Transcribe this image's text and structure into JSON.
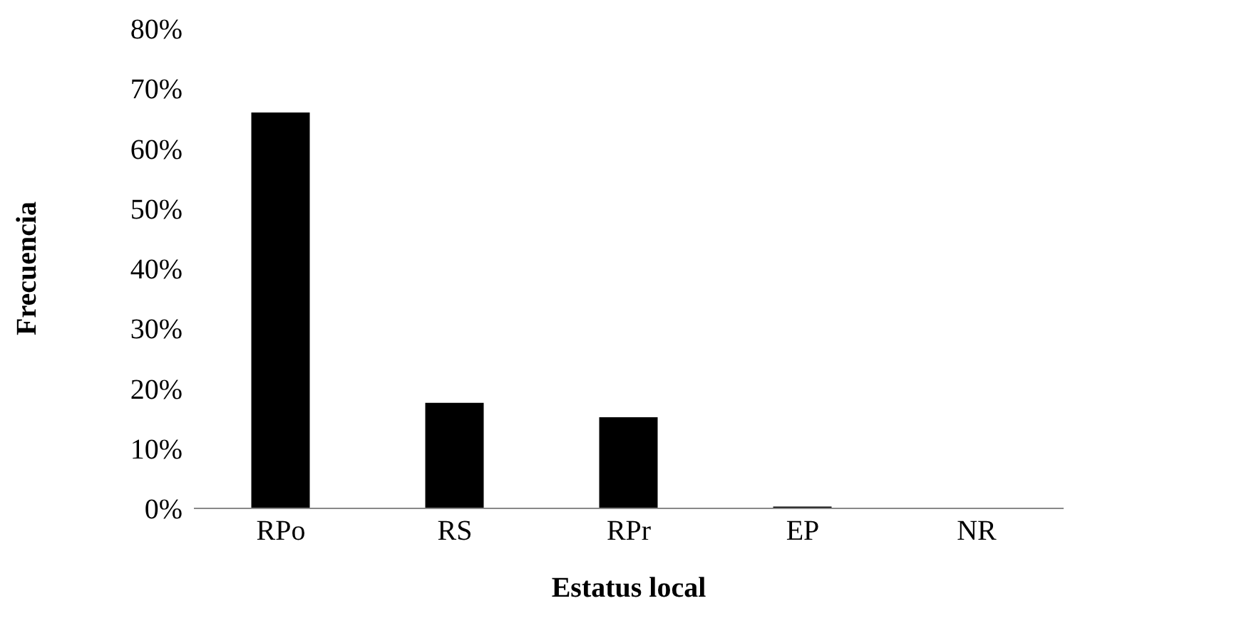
{
  "chart_data": {
    "type": "bar",
    "xlabel": "Estatus local",
    "ylabel": "Frecuencia",
    "categories": [
      "RPo",
      "RS",
      "RPr",
      "EP",
      "NR"
    ],
    "values": [
      66,
      17.6,
      15.2,
      0.3,
      0
    ],
    "color": "#000000",
    "ylim": [
      0,
      80
    ],
    "yticks": [
      {
        "value": 0,
        "label": "0%"
      },
      {
        "value": 10,
        "label": "10%"
      },
      {
        "value": 20,
        "label": "20%"
      },
      {
        "value": 30,
        "label": "30%"
      },
      {
        "value": 40,
        "label": "40%"
      },
      {
        "value": 50,
        "label": "50%"
      },
      {
        "value": 60,
        "label": "60%"
      },
      {
        "value": 70,
        "label": "70%"
      },
      {
        "value": 80,
        "label": "80%"
      }
    ],
    "grid": false,
    "legend": false
  }
}
